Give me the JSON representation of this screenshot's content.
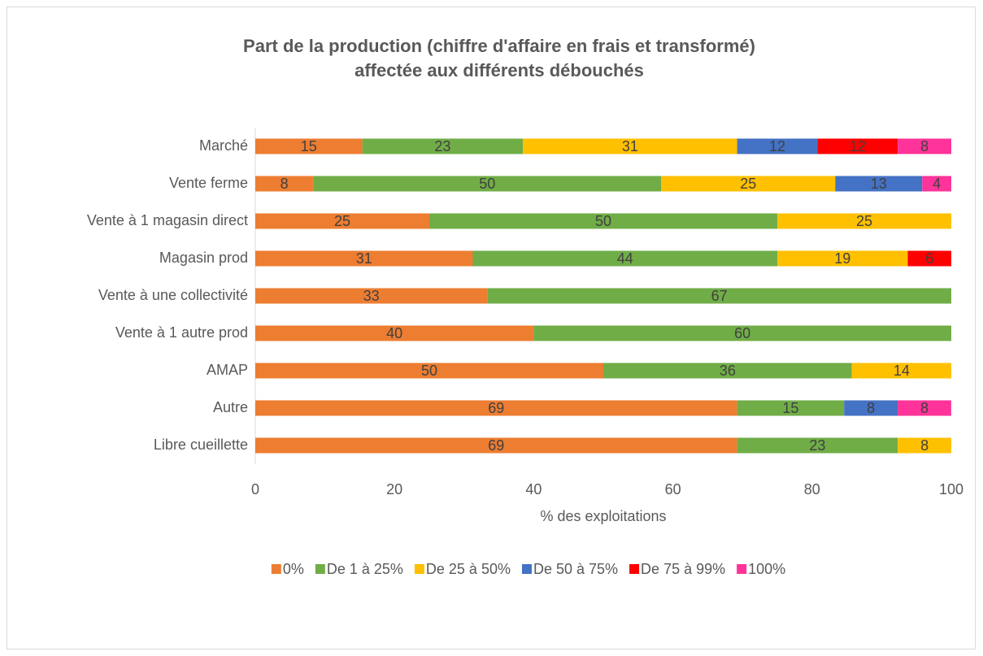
{
  "chart_data": {
    "type": "bar",
    "orientation": "horizontal",
    "stacked": true,
    "title": [
      "Part de la production (chiffre d'affaire en frais et transformé)",
      "affectée aux différents débouchés"
    ],
    "xlabel": "% des exploitations",
    "categories": [
      "Marché",
      "Vente ferme",
      "Vente à 1 magasin direct",
      "Magasin prod",
      "Vente à une collectivité",
      "Vente à 1 autre prod",
      "AMAP",
      "Autre",
      "Libre cueillette"
    ],
    "series": [
      {
        "name": "0%",
        "color": "#ED7D31",
        "values": [
          15.38,
          8.33,
          25,
          31.25,
          33.33,
          40,
          50,
          69.23,
          69.23
        ],
        "value_labels": [
          "15",
          "8",
          "25",
          "31",
          "33",
          "40",
          "50",
          "69",
          "69"
        ]
      },
      {
        "name": "De 1 à 25%",
        "color": "#70AD47",
        "values": [
          23.08,
          50,
          50,
          43.75,
          66.67,
          60,
          35.71,
          15.38,
          23.08
        ],
        "value_labels": [
          "23",
          "50",
          "50",
          "44",
          "67",
          "60",
          "36",
          "15",
          "23"
        ]
      },
      {
        "name": "De 25 à 50%",
        "color": "#FFC000",
        "values": [
          30.77,
          25,
          25,
          18.75,
          null,
          null,
          14.29,
          null,
          7.69
        ],
        "value_labels": [
          "31",
          "25",
          "25",
          "19",
          null,
          null,
          "14",
          null,
          "8"
        ]
      },
      {
        "name": "De 50 à 75%",
        "color": "#4472C4",
        "values": [
          11.54,
          12.5,
          null,
          null,
          null,
          null,
          null,
          7.69,
          null
        ],
        "value_labels": [
          "12",
          "13",
          null,
          null,
          null,
          null,
          null,
          "8",
          null
        ]
      },
      {
        "name": "De 75 à 99%",
        "color": "#FF0000",
        "values": [
          11.54,
          null,
          null,
          6.25,
          null,
          null,
          null,
          null,
          null
        ],
        "value_labels": [
          "12",
          null,
          null,
          "6",
          null,
          null,
          null,
          null,
          null
        ]
      },
      {
        "name": "100%",
        "color": "#FF3399",
        "values": [
          7.69,
          4.17,
          null,
          null,
          null,
          null,
          null,
          7.69,
          null
        ],
        "value_labels": [
          "8",
          "4",
          null,
          null,
          null,
          null,
          null,
          "8",
          null
        ]
      }
    ],
    "xlim": [
      0,
      100
    ],
    "xticks": [
      0,
      20,
      40,
      60,
      80,
      100
    ],
    "grid": false,
    "legend": "bottom"
  }
}
